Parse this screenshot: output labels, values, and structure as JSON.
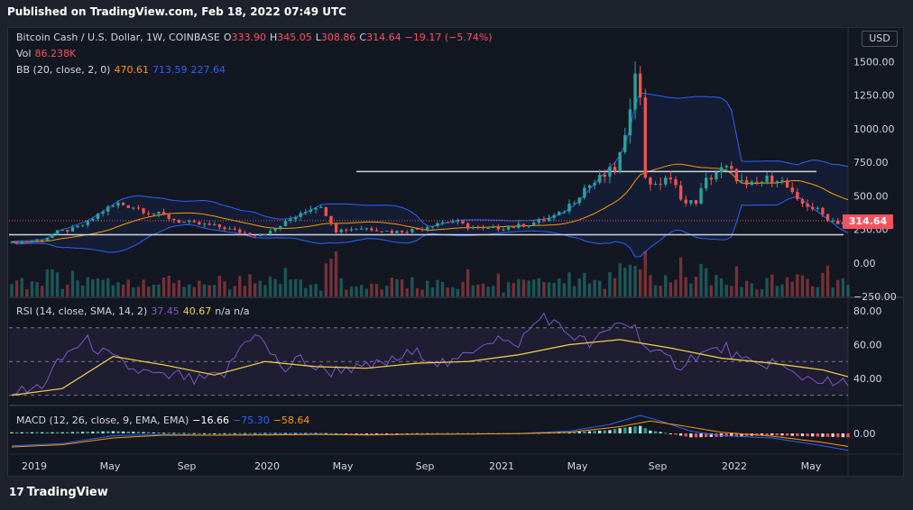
{
  "header": {
    "published": "Published on TradingView.com, Feb 18, 2022 07:49 UTC"
  },
  "legend": {
    "symbol": "Bitcoin Cash / U.S. Dollar, 1W, COINBASE",
    "o_label": "O",
    "o_value": "333.90",
    "h_label": "H",
    "h_value": "345.05",
    "l_label": "L",
    "l_value": "308.86",
    "c_label": "C",
    "c_value": "314.64",
    "change": "−19.17 (−5.74%)",
    "vol_label": "Vol",
    "vol_value": "86.238K",
    "bb_label": "BB (20, close, 2, 0)",
    "bb_basis": "470.61",
    "bb_upper": "713.59",
    "bb_lower": "227.64",
    "rsi_label": "RSI (14, close, SMA, 14, 2)",
    "rsi_value": "37.45",
    "rsi_ma": "40.67",
    "rsi_na": "n/a  n/a",
    "macd_label": "MACD (12, 26, close, 9, EMA, EMA)",
    "macd_hist": "−16.66",
    "macd_line": "−75.30",
    "macd_signal": "−58.64"
  },
  "currency_button": "USD",
  "last_price_tag": "314.64",
  "footer": {
    "brand": "TradingView",
    "logo_glyph": "17"
  },
  "colors": {
    "up": "#26a69a",
    "down": "#ef5350",
    "bb_band": "#2962ff",
    "bb_basis": "#ff9800",
    "rsi": "#7e57c2",
    "rsi_ma": "#f5d547",
    "macd": "#2962ff",
    "signal": "#ff9800"
  },
  "chart_data": [
    {
      "type": "candlestick",
      "title": "Bitcoin Cash / U.S. Dollar, 1W, COINBASE",
      "x_ticks": [
        "2019",
        "May",
        "Sep",
        "2020",
        "May",
        "Sep",
        "2021",
        "May",
        "Sep",
        "2022",
        "May"
      ],
      "y_ticks": [
        "1500.00",
        "1250.00",
        "1000.00",
        "750.00",
        "500.00",
        "250.00",
        "0.00",
        "−250.00"
      ],
      "ylim": [
        -250,
        1750
      ],
      "close_path": [
        [
          0,
          150
        ],
        [
          3,
          160
        ],
        [
          6,
          170
        ],
        [
          9,
          230
        ],
        [
          12,
          250
        ],
        [
          15,
          300
        ],
        [
          18,
          390
        ],
        [
          21,
          440
        ],
        [
          24,
          420
        ],
        [
          27,
          380
        ],
        [
          30,
          350
        ],
        [
          33,
          310
        ],
        [
          36,
          290
        ],
        [
          39,
          280
        ],
        [
          42,
          260
        ],
        [
          45,
          230
        ],
        [
          48,
          210
        ],
        [
          51,
          230
        ],
        [
          54,
          300
        ],
        [
          57,
          380
        ],
        [
          60,
          430
        ],
        [
          62,
          370
        ],
        [
          64,
          240
        ],
        [
          66,
          250
        ],
        [
          69,
          260
        ],
        [
          72,
          250
        ],
        [
          75,
          230
        ],
        [
          78,
          240
        ],
        [
          81,
          260
        ],
        [
          84,
          300
        ],
        [
          87,
          310
        ],
        [
          90,
          270
        ],
        [
          93,
          250
        ],
        [
          96,
          260
        ],
        [
          99,
          270
        ],
        [
          102,
          290
        ],
        [
          105,
          320
        ],
        [
          108,
          360
        ],
        [
          111,
          470
        ],
        [
          113,
          560
        ],
        [
          115,
          600
        ],
        [
          117,
          650
        ],
        [
          119,
          700
        ],
        [
          121,
          900
        ],
        [
          122,
          1200
        ],
        [
          123,
          1500
        ],
        [
          124,
          1200
        ],
        [
          125,
          650
        ],
        [
          127,
          560
        ],
        [
          129,
          640
        ],
        [
          131,
          560
        ],
        [
          133,
          440
        ],
        [
          135,
          460
        ],
        [
          137,
          610
        ],
        [
          139,
          680
        ],
        [
          141,
          700
        ],
        [
          143,
          640
        ],
        [
          145,
          560
        ],
        [
          147,
          590
        ],
        [
          149,
          620
        ],
        [
          151,
          640
        ],
        [
          153,
          560
        ],
        [
          155,
          450
        ],
        [
          157,
          430
        ],
        [
          159,
          390
        ],
        [
          161,
          330
        ],
        [
          163,
          300
        ],
        [
          165,
          315
        ]
      ],
      "horizontal_levels": [
        680,
        210
      ],
      "last_price": 314.64,
      "bollinger_bands": {
        "basis": 470.61,
        "upper": 713.59,
        "lower": 227.64
      }
    },
    {
      "type": "line",
      "title": "RSI (14, close, SMA, 14, 2)",
      "y_ticks": [
        "80.00",
        "60.00",
        "40.00"
      ],
      "ylim": [
        25,
        87
      ],
      "levels": [
        70,
        50,
        30
      ],
      "rsi": [
        [
          0,
          33
        ],
        [
          3,
          32
        ],
        [
          6,
          36
        ],
        [
          9,
          48
        ],
        [
          12,
          58
        ],
        [
          15,
          62
        ],
        [
          18,
          55
        ],
        [
          21,
          50
        ],
        [
          24,
          45
        ],
        [
          27,
          43
        ],
        [
          30,
          40
        ],
        [
          33,
          42
        ],
        [
          36,
          38
        ],
        [
          39,
          40
        ],
        [
          42,
          42
        ],
        [
          45,
          58
        ],
        [
          48,
          68
        ],
        [
          51,
          55
        ],
        [
          54,
          45
        ],
        [
          57,
          52
        ],
        [
          60,
          46
        ],
        [
          63,
          44
        ],
        [
          66,
          47
        ],
        [
          69,
          45
        ],
        [
          72,
          48
        ],
        [
          75,
          50
        ],
        [
          78,
          54
        ],
        [
          81,
          55
        ],
        [
          84,
          50
        ],
        [
          87,
          48
        ],
        [
          90,
          55
        ],
        [
          93,
          62
        ],
        [
          96,
          64
        ],
        [
          99,
          58
        ],
        [
          102,
          68
        ],
        [
          105,
          78
        ],
        [
          108,
          70
        ],
        [
          111,
          65
        ],
        [
          114,
          60
        ],
        [
          117,
          66
        ],
        [
          120,
          74
        ],
        [
          123,
          70
        ],
        [
          126,
          55
        ],
        [
          129,
          52
        ],
        [
          132,
          48
        ],
        [
          135,
          54
        ],
        [
          138,
          56
        ],
        [
          141,
          58
        ],
        [
          144,
          50
        ],
        [
          147,
          47
        ],
        [
          150,
          50
        ],
        [
          153,
          44
        ],
        [
          156,
          41
        ],
        [
          159,
          40
        ],
        [
          162,
          36
        ],
        [
          165,
          37
        ]
      ],
      "rsi_ma": [
        [
          0,
          30
        ],
        [
          10,
          34
        ],
        [
          20,
          53
        ],
        [
          30,
          48
        ],
        [
          40,
          42
        ],
        [
          50,
          50
        ],
        [
          60,
          47
        ],
        [
          70,
          46
        ],
        [
          80,
          49
        ],
        [
          90,
          50
        ],
        [
          100,
          54
        ],
        [
          110,
          60
        ],
        [
          120,
          63
        ],
        [
          130,
          58
        ],
        [
          140,
          52
        ],
        [
          150,
          49
        ],
        [
          160,
          45
        ],
        [
          165,
          41
        ]
      ]
    },
    {
      "type": "line",
      "title": "MACD (12, 26, close, 9, EMA, EMA)",
      "y_ticks": [
        "0.00"
      ],
      "ylim": [
        -80,
        120
      ],
      "macd": [
        [
          0,
          -55
        ],
        [
          10,
          -45
        ],
        [
          20,
          -10
        ],
        [
          30,
          -5
        ],
        [
          40,
          -8
        ],
        [
          50,
          -5
        ],
        [
          60,
          -3
        ],
        [
          70,
          -8
        ],
        [
          80,
          -3
        ],
        [
          90,
          -2
        ],
        [
          100,
          0
        ],
        [
          110,
          10
        ],
        [
          118,
          40
        ],
        [
          124,
          80
        ],
        [
          128,
          55
        ],
        [
          134,
          10
        ],
        [
          140,
          -10
        ],
        [
          150,
          -20
        ],
        [
          160,
          -55
        ],
        [
          165,
          -75
        ]
      ],
      "signal": [
        [
          0,
          -60
        ],
        [
          10,
          -50
        ],
        [
          20,
          -20
        ],
        [
          30,
          -8
        ],
        [
          40,
          -8
        ],
        [
          50,
          -7
        ],
        [
          60,
          -5
        ],
        [
          70,
          -6
        ],
        [
          80,
          -4
        ],
        [
          90,
          -3
        ],
        [
          100,
          -1
        ],
        [
          110,
          5
        ],
        [
          120,
          30
        ],
        [
          126,
          55
        ],
        [
          132,
          35
        ],
        [
          140,
          5
        ],
        [
          150,
          -12
        ],
        [
          160,
          -40
        ],
        [
          165,
          -58
        ]
      ]
    }
  ]
}
